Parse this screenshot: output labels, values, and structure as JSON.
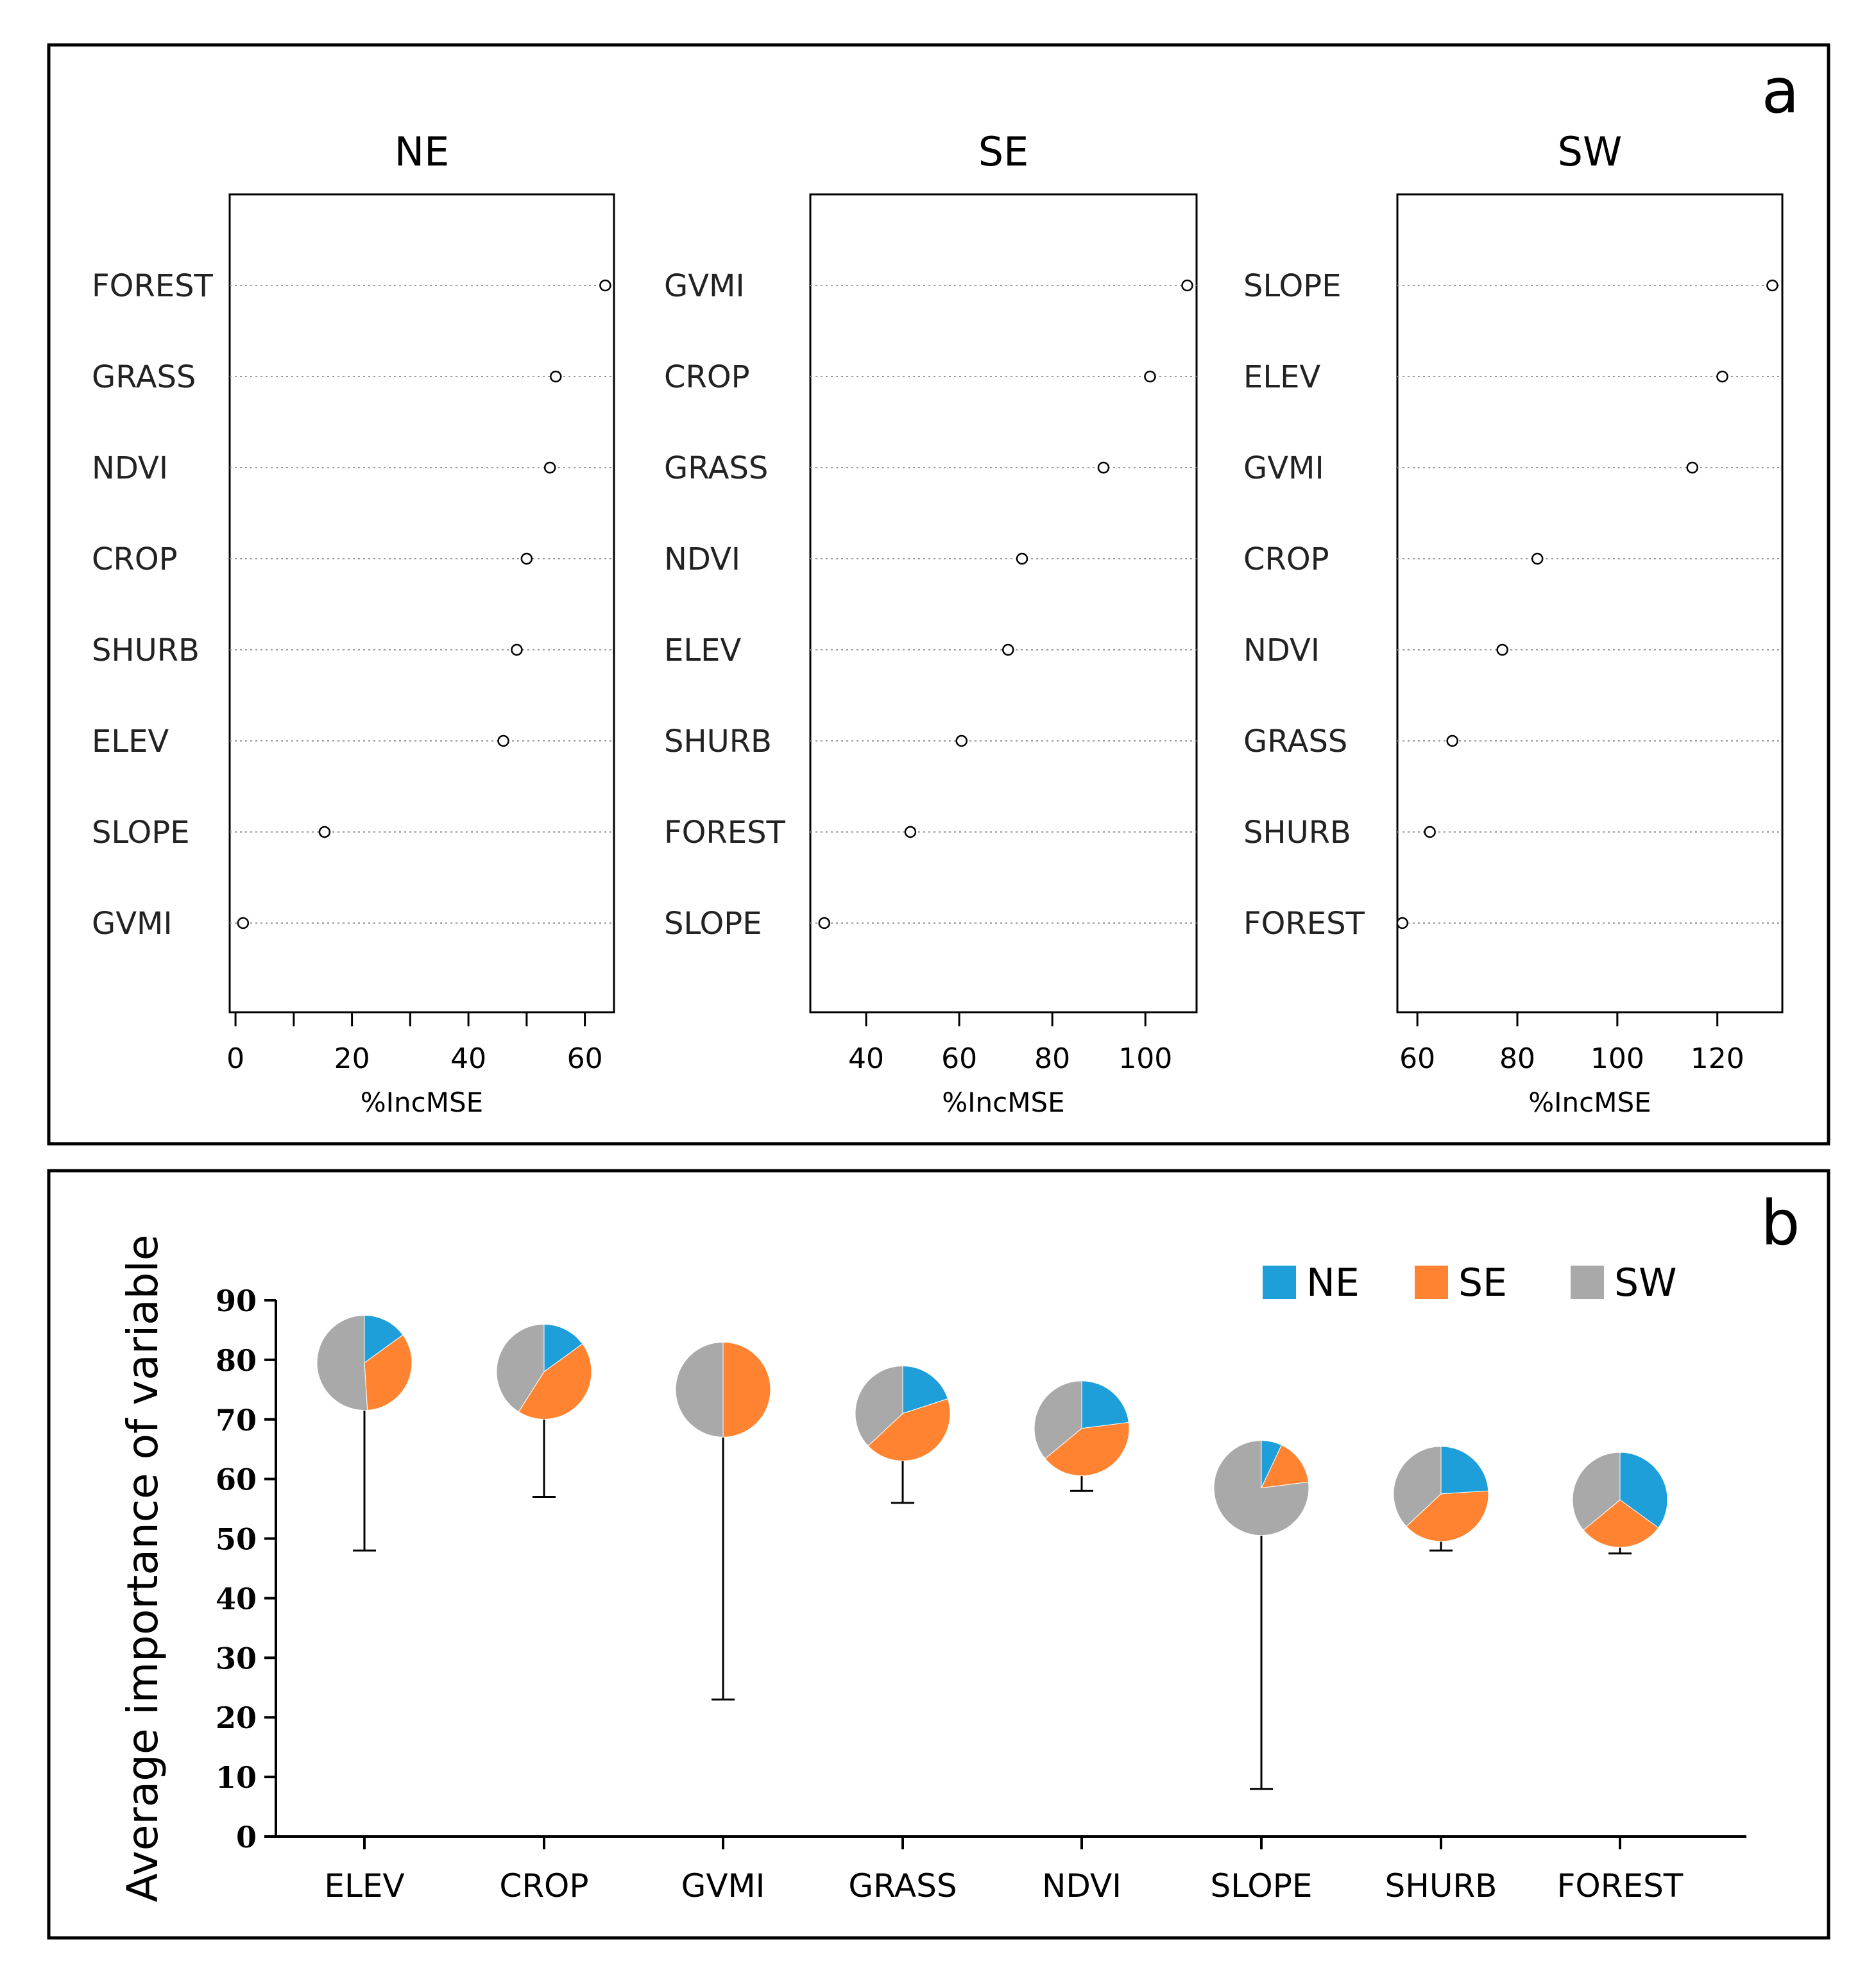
{
  "panel_a": {
    "label": "a",
    "chart_data": [
      {
        "type": "scatter",
        "title": "NE",
        "xlabel": "%IncMSE",
        "xlim": [
          -1,
          65
        ],
        "xticks": [
          0,
          20,
          40,
          60
        ],
        "minor_ticks": [
          10,
          30,
          50
        ],
        "categories": [
          "FOREST",
          "GRASS",
          "NDVI",
          "CROP",
          "SHURB",
          "ELEV",
          "SLOPE",
          "GVMI"
        ],
        "values": [
          63.5,
          55,
          54,
          50,
          48.3,
          46,
          15.3,
          1.3
        ]
      },
      {
        "type": "scatter",
        "title": "SE",
        "xlabel": "%IncMSE",
        "xlim": [
          28,
          111
        ],
        "xticks": [
          40,
          60,
          80,
          100
        ],
        "categories": [
          "GVMI",
          "CROP",
          "GRASS",
          "NDVI",
          "ELEV",
          "SHURB",
          "FOREST",
          "SLOPE"
        ],
        "values": [
          109,
          101,
          91,
          73.5,
          70.5,
          60.5,
          49.5,
          31
        ]
      },
      {
        "type": "scatter",
        "title": "SW",
        "xlabel": "%IncMSE",
        "xlim": [
          56,
          133
        ],
        "xticks": [
          60,
          80,
          100,
          120
        ],
        "categories": [
          "SLOPE",
          "ELEV",
          "GVMI",
          "CROP",
          "NDVI",
          "GRASS",
          "SHURB",
          "FOREST"
        ],
        "values": [
          131,
          121,
          115,
          84,
          77,
          67,
          62.5,
          57
        ]
      }
    ]
  },
  "panel_b": {
    "label": "b",
    "chart_data": {
      "type": "pie",
      "ylabel": "Average importance of variable",
      "ylim": [
        0,
        90
      ],
      "yticks": [
        0,
        10,
        20,
        30,
        40,
        50,
        60,
        70,
        80,
        90
      ],
      "categories": [
        "ELEV",
        "CROP",
        "GVMI",
        "GRASS",
        "NDVI",
        "SLOPE",
        "SHURB",
        "FOREST"
      ],
      "averages": [
        79.5,
        78,
        75,
        71,
        68.5,
        58.5,
        57.5,
        56.5
      ],
      "error_low": [
        48,
        57,
        23,
        56,
        58,
        8,
        48,
        47.5
      ],
      "shares": {
        "NE": [
          0.15,
          0.15,
          0.0,
          0.2,
          0.23,
          0.07,
          0.24,
          0.35
        ],
        "SE": [
          0.34,
          0.44,
          0.5,
          0.43,
          0.41,
          0.16,
          0.39,
          0.29
        ],
        "SW": [
          0.51,
          0.41,
          0.5,
          0.37,
          0.36,
          0.77,
          0.37,
          0.36
        ]
      },
      "legend": [
        "NE",
        "SE",
        "SW"
      ],
      "colors": {
        "NE": "#1E9FD9",
        "SE": "#FF8330",
        "SW": "#A9A9A9"
      }
    }
  }
}
